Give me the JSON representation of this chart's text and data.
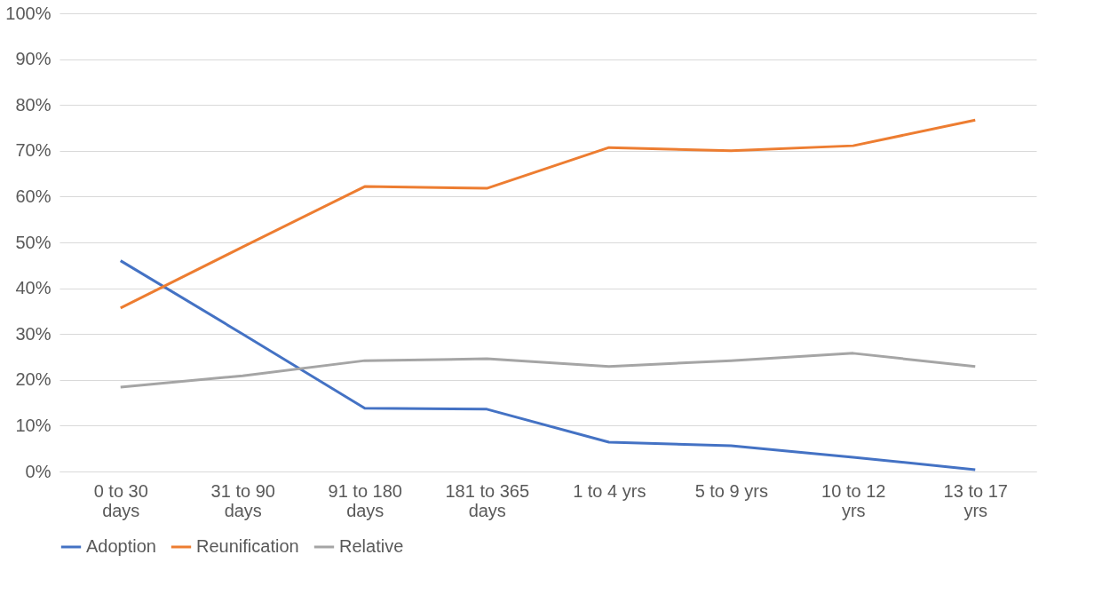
{
  "chart_data": {
    "type": "line",
    "categories": [
      "0 to 30 days",
      "31 to 90 days",
      "91 to 180 days",
      "181 to 365 days",
      "1 to 4 yrs",
      "5 to 9 yrs",
      "10 to 12 yrs",
      "13 to 17 yrs"
    ],
    "series": [
      {
        "name": "Adoption",
        "color": "#4472c4",
        "values": [
          46,
          30,
          13.8,
          13.6,
          6.4,
          5.6,
          3.1,
          0.4
        ]
      },
      {
        "name": "Reunification",
        "color": "#ed7d31",
        "values": [
          35.7,
          49,
          62.2,
          61.8,
          70.7,
          70,
          71.1,
          76.7
        ]
      },
      {
        "name": "Relative",
        "color": "#a5a5a5",
        "values": [
          18.4,
          20.9,
          24.2,
          24.6,
          22.9,
          24.2,
          25.8,
          22.9
        ]
      }
    ],
    "ylim": [
      0,
      100
    ],
    "yticks": [
      {
        "value": 0,
        "label": "0%"
      },
      {
        "value": 10,
        "label": "10%"
      },
      {
        "value": 20,
        "label": "20%"
      },
      {
        "value": 30,
        "label": "30%"
      },
      {
        "value": 40,
        "label": "40%"
      },
      {
        "value": 50,
        "label": "50%"
      },
      {
        "value": 60,
        "label": "60%"
      },
      {
        "value": 70,
        "label": "70%"
      },
      {
        "value": 80,
        "label": "80%"
      },
      {
        "value": 90,
        "label": "90%"
      },
      {
        "value": 100,
        "label": "100%"
      }
    ],
    "grid": "y",
    "legend": "bottom",
    "marker": "none",
    "line_style": "solid"
  }
}
